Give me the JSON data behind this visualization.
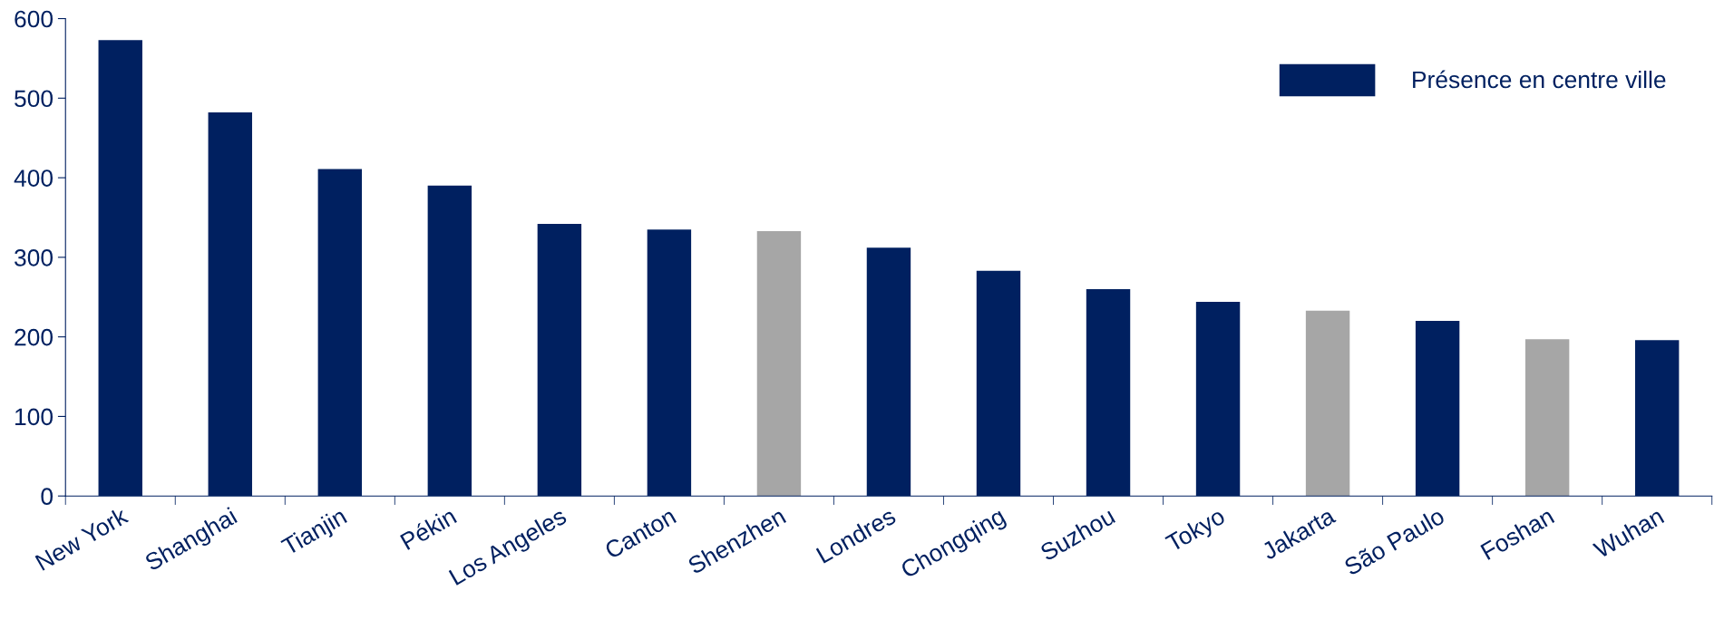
{
  "chart_data": {
    "type": "bar",
    "categories": [
      "New York",
      "Shanghai",
      "Tianjin",
      "Pékin",
      "Los Angeles",
      "Canton",
      "Shenzhen",
      "Londres",
      "Chongqing",
      "Suzhou",
      "Tokyo",
      "Jakarta",
      "São Paulo",
      "Foshan",
      "Wuhan"
    ],
    "series": [
      {
        "name": "Présence en centre ville",
        "color": "#002060",
        "values": [
          573,
          482,
          411,
          390,
          342,
          335,
          333,
          312,
          283,
          260,
          244,
          233,
          220,
          197,
          196
        ],
        "colors": [
          "#002060",
          "#002060",
          "#002060",
          "#002060",
          "#002060",
          "#002060",
          "#a6a6a6",
          "#002060",
          "#002060",
          "#002060",
          "#002060",
          "#a6a6a6",
          "#002060",
          "#a6a6a6",
          "#002060"
        ]
      }
    ],
    "ylim": [
      0,
      600
    ],
    "yticks": [
      0,
      100,
      200,
      300,
      400,
      500,
      600
    ],
    "grid": false,
    "legend": "top right"
  }
}
